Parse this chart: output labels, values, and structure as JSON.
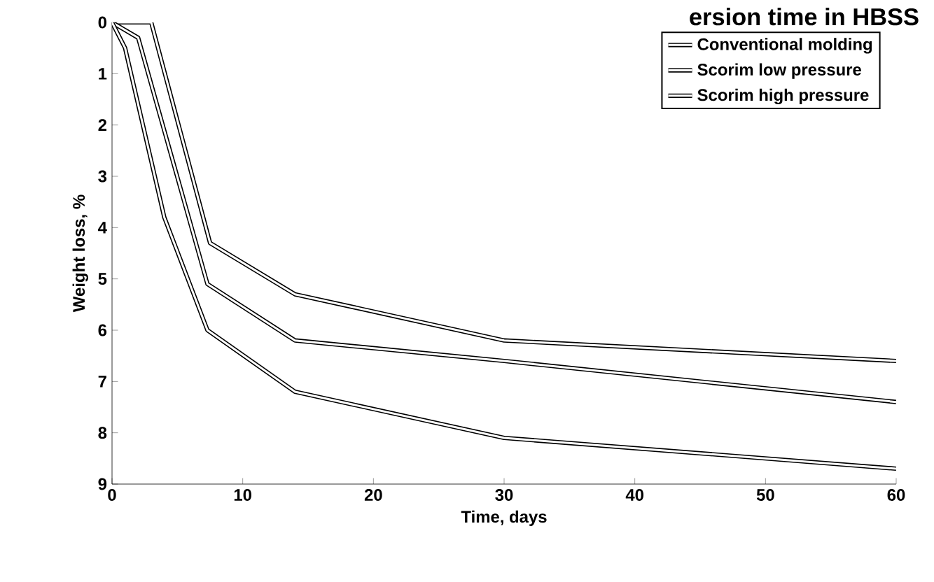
{
  "chart_data": {
    "type": "line",
    "title": "ersion time in HBSS",
    "xlabel": "Time, days",
    "ylabel": "Weight loss, %",
    "xlim": [
      0,
      60
    ],
    "xticks": [
      0,
      10,
      20,
      30,
      40,
      50,
      60
    ],
    "ylim": [
      9,
      0
    ],
    "yticks": [
      0,
      1,
      2,
      3,
      4,
      5,
      6,
      7,
      8,
      9
    ],
    "legend": "top right",
    "grid": false,
    "line_style": "solid",
    "marker": "none",
    "series": [
      {
        "name": "Conventional molding",
        "color": "#000000",
        "x": [
          0,
          3,
          7.5,
          14,
          30,
          60
        ],
        "values": [
          0,
          0,
          4.3,
          5.3,
          6.2,
          6.6
        ]
      },
      {
        "name": "Scorim low pressure",
        "color": "#000000",
        "x": [
          0,
          2,
          7.3,
          14,
          30,
          60
        ],
        "values": [
          0,
          0.3,
          5.1,
          6.2,
          6.6,
          7.4
        ]
      },
      {
        "name": "Scorim high pressure",
        "color": "#000000",
        "x": [
          0,
          1,
          4,
          7.3,
          14,
          30,
          60
        ],
        "values": [
          0,
          0.5,
          3.8,
          6.0,
          7.2,
          8.1,
          8.7
        ]
      }
    ]
  }
}
